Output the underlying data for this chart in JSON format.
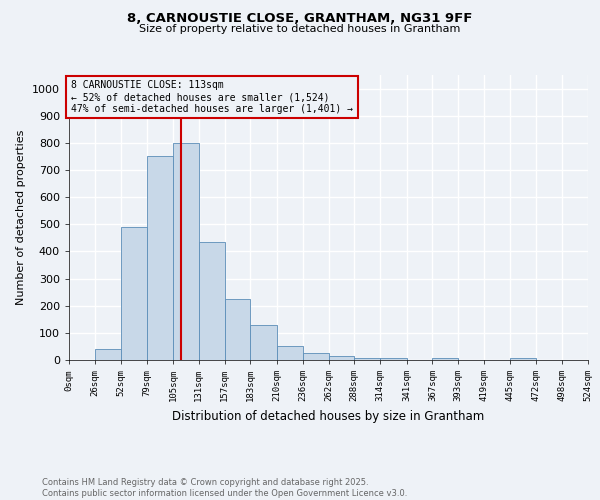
{
  "title1": "8, CARNOUSTIE CLOSE, GRANTHAM, NG31 9FF",
  "title2": "Size of property relative to detached houses in Grantham",
  "xlabel": "Distribution of detached houses by size in Grantham",
  "ylabel": "Number of detached properties",
  "bin_edges": [
    0,
    26,
    52,
    79,
    105,
    131,
    157,
    183,
    210,
    236,
    262,
    288,
    314,
    341,
    367,
    393,
    419,
    445,
    472,
    498,
    524
  ],
  "bar_heights": [
    0,
    40,
    490,
    750,
    800,
    435,
    225,
    128,
    50,
    27,
    15,
    8,
    8,
    0,
    8,
    0,
    0,
    8,
    0,
    0
  ],
  "bar_color": "#c8d8e8",
  "bar_edgecolor": "#5b8db8",
  "property_size": 113,
  "red_line_color": "#cc0000",
  "annotation_text": "8 CARNOUSTIE CLOSE: 113sqm\n← 52% of detached houses are smaller (1,524)\n47% of semi-detached houses are larger (1,401) →",
  "ylim": [
    0,
    1050
  ],
  "yticks": [
    0,
    100,
    200,
    300,
    400,
    500,
    600,
    700,
    800,
    900,
    1000
  ],
  "background_color": "#eef2f7",
  "footer_text": "Contains HM Land Registry data © Crown copyright and database right 2025.\nContains public sector information licensed under the Open Government Licence v3.0.",
  "grid_color": "#ffffff",
  "tick_labels": [
    "0sqm",
    "26sqm",
    "52sqm",
    "79sqm",
    "105sqm",
    "131sqm",
    "157sqm",
    "183sqm",
    "210sqm",
    "236sqm",
    "262sqm",
    "288sqm",
    "314sqm",
    "341sqm",
    "367sqm",
    "393sqm",
    "419sqm",
    "445sqm",
    "472sqm",
    "498sqm",
    "524sqm"
  ]
}
